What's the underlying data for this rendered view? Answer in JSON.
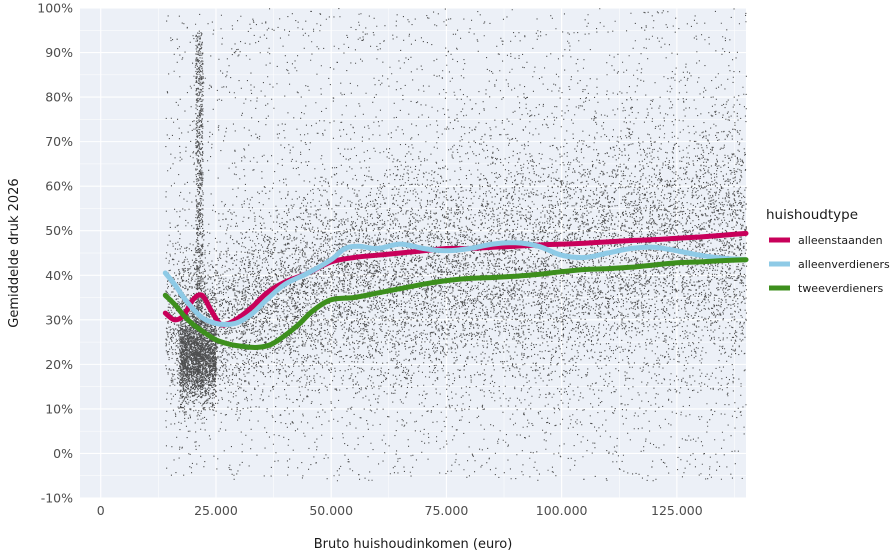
{
  "chart_data": {
    "type": "scatter",
    "title": "",
    "xlabel": "Bruto huishoudinkomen (euro)",
    "ylabel": "Gemiddelde druk 2026",
    "xlim": [
      -4500,
      140000
    ],
    "ylim": [
      -10,
      100
    ],
    "x_ticks": [
      {
        "value": 0,
        "label": "0"
      },
      {
        "value": 25000,
        "label": "25.000"
      },
      {
        "value": 50000,
        "label": "50.000"
      },
      {
        "value": 75000,
        "label": "75.000"
      },
      {
        "value": 100000,
        "label": "100.000"
      },
      {
        "value": 125000,
        "label": "125.000"
      }
    ],
    "y_ticks": [
      {
        "value": -10,
        "label": "-10%"
      },
      {
        "value": 0,
        "label": "0%"
      },
      {
        "value": 10,
        "label": "10%"
      },
      {
        "value": 20,
        "label": "20%"
      },
      {
        "value": 30,
        "label": "30%"
      },
      {
        "value": 40,
        "label": "40%"
      },
      {
        "value": 50,
        "label": "50%"
      },
      {
        "value": 60,
        "label": "60%"
      },
      {
        "value": 70,
        "label": "70%"
      },
      {
        "value": 80,
        "label": "80%"
      },
      {
        "value": 90,
        "label": "90%"
      },
      {
        "value": 100,
        "label": "100%"
      }
    ],
    "grid": true,
    "background": "#ecf0f7",
    "point_color": "#333333",
    "legend": {
      "title": "huishoudtype",
      "placement": "right"
    },
    "series": [
      {
        "name": "alleenstaanden",
        "color": "#c8005a",
        "x": [
          14000,
          16000,
          18000,
          20000,
          22000,
          24000,
          26000,
          28000,
          30000,
          33000,
          36000,
          40000,
          45000,
          50000,
          55000,
          60000,
          65000,
          70000,
          75000,
          80000,
          85000,
          90000,
          95000,
          100000,
          105000,
          110000,
          115000,
          120000,
          125000,
          130000,
          135000,
          140000
        ],
        "y": [
          31.5,
          30,
          31,
          34.5,
          35.5,
          32,
          29,
          29.3,
          30.5,
          33,
          36,
          38.5,
          40.5,
          43,
          44,
          44.5,
          45,
          45.5,
          46,
          46,
          46.3,
          46.5,
          46.8,
          47,
          47.2,
          47.5,
          47.8,
          48,
          48.3,
          48.6,
          49,
          49.4
        ]
      },
      {
        "name": "alleenverdieners",
        "color": "#8ecae6",
        "x": [
          14000,
          16000,
          18000,
          20000,
          22000,
          24000,
          26000,
          28000,
          30000,
          33000,
          36000,
          40000,
          45000,
          50000,
          53000,
          56000,
          60000,
          65000,
          70000,
          75000,
          80000,
          85000,
          90000,
          95000,
          100000,
          105000,
          110000,
          115000,
          120000,
          125000,
          130000,
          135000,
          140000
        ],
        "y": [
          40.5,
          38,
          35,
          32.5,
          30.5,
          29.5,
          29,
          29,
          29.5,
          31.5,
          34.5,
          38,
          40.5,
          43.5,
          46,
          46.5,
          46,
          47,
          46,
          45.5,
          46,
          47,
          47.3,
          46.5,
          44.5,
          44,
          45,
          46,
          46.3,
          45.5,
          44.5,
          43.8,
          43.5
        ]
      },
      {
        "name": "tweeverdieners",
        "color": "#3d8f1d",
        "x": [
          14000,
          16000,
          18000,
          20000,
          22000,
          25000,
          28000,
          31000,
          34000,
          37000,
          40000,
          43000,
          46000,
          50000,
          55000,
          60000,
          65000,
          70000,
          75000,
          80000,
          85000,
          90000,
          95000,
          100000,
          105000,
          110000,
          115000,
          120000,
          125000,
          130000,
          135000,
          140000
        ],
        "y": [
          35.5,
          33.5,
          31,
          29,
          27.5,
          25.5,
          24.5,
          24,
          23.8,
          24.5,
          26.5,
          29,
          32,
          34.5,
          35,
          36,
          37,
          38,
          38.8,
          39.3,
          39.5,
          39.8,
          40.2,
          40.8,
          41.3,
          41.5,
          41.8,
          42.3,
          42.8,
          43,
          43.3,
          43.5
        ]
      }
    ]
  }
}
